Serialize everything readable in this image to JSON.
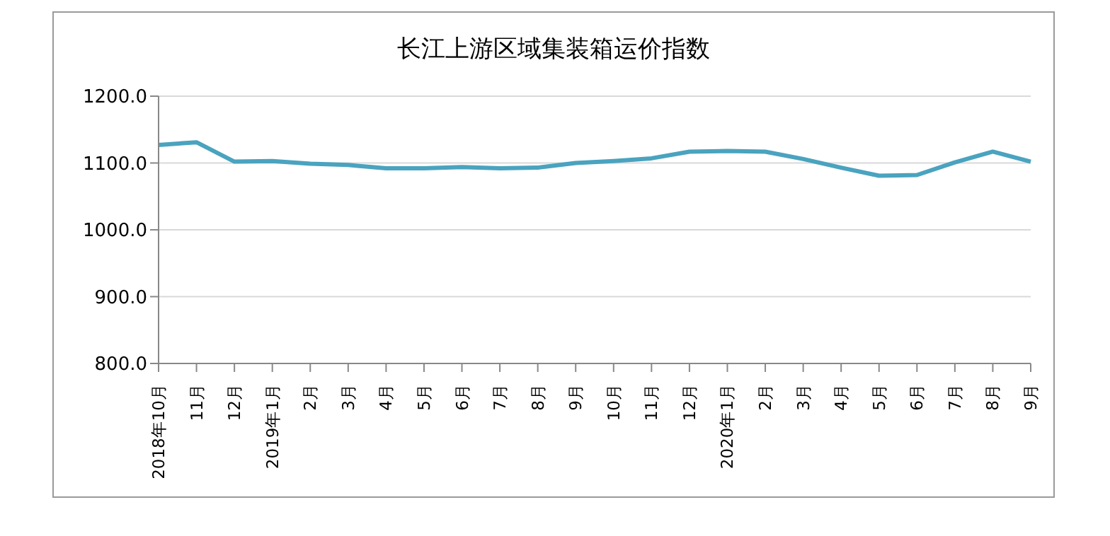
{
  "chart_data": {
    "type": "line",
    "title": "长江上游区域集装箱运价指数",
    "categories": [
      "2018年10月",
      "11月",
      "12月",
      "2019年1月",
      "2月",
      "3月",
      "4月",
      "5月",
      "6月",
      "7月",
      "8月",
      "9月",
      "10月",
      "11月",
      "12月",
      "2020年1月",
      "2月",
      "3月",
      "4月",
      "5月",
      "6月",
      "7月",
      "8月",
      "9月"
    ],
    "series": [
      {
        "color": "#4aa3bf",
        "values": [
          1127,
          1131,
          1102,
          1103,
          1099,
          1097,
          1092,
          1092,
          1094,
          1092,
          1093,
          1100,
          1103,
          1107,
          1117,
          1118,
          1117,
          1106,
          1093,
          1081,
          1082,
          1101,
          1117,
          1102
        ]
      }
    ],
    "ylim": [
      800,
      1200
    ],
    "yticks": [
      {
        "value": 800,
        "label": "800.0"
      },
      {
        "value": 900,
        "label": "900.0"
      },
      {
        "value": 1000,
        "label": "1000.0"
      },
      {
        "value": 1100,
        "label": "1100.0"
      },
      {
        "value": 1200,
        "label": "1200.0"
      }
    ],
    "grid": "y",
    "legend": false,
    "marker": "none",
    "line_style": "solid"
  }
}
